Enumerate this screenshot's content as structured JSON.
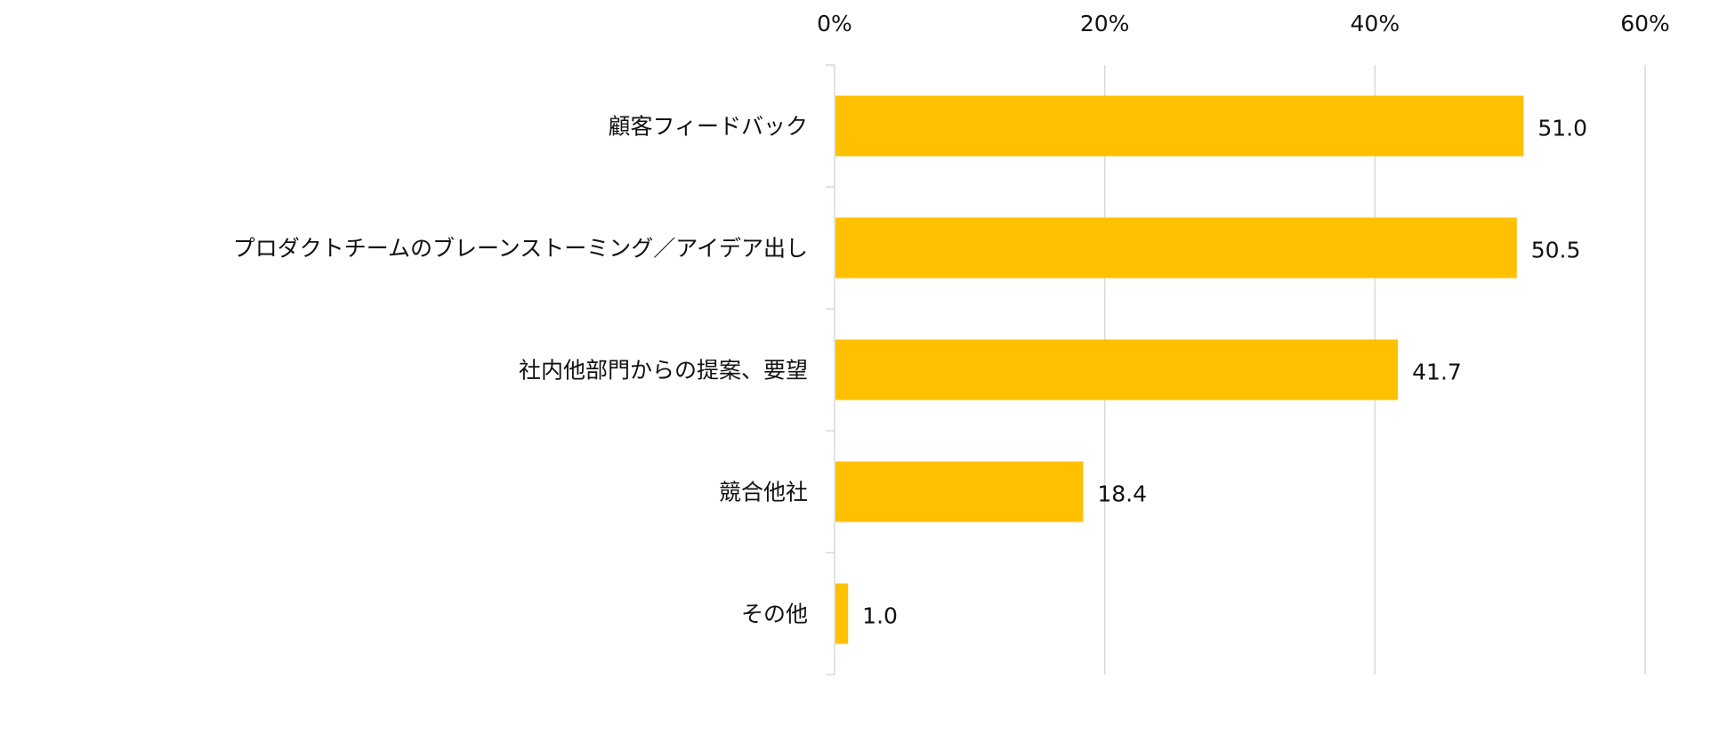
{
  "chart_data": {
    "type": "bar",
    "orientation": "horizontal",
    "categories": [
      "顧客フィードバック",
      "プロダクトチームのブレーンストーミング／アイデア出し",
      "社内他部門からの提案、要望",
      "競合他社",
      "その他"
    ],
    "values": [
      51.0,
      50.5,
      41.7,
      18.4,
      1.0
    ],
    "value_labels": [
      "51.0",
      "50.5",
      "41.7",
      "18.4",
      "1.0"
    ],
    "xlim": [
      0,
      60
    ],
    "xticks": [
      0,
      20,
      40,
      60
    ],
    "xtick_labels": [
      "0%",
      "20%",
      "40%",
      "60%"
    ],
    "x_axis_position": "top",
    "grid": true,
    "bar_color": "#FFC000",
    "gridline_color": "#D9D9D9",
    "title": "",
    "xlabel": "",
    "ylabel": ""
  }
}
